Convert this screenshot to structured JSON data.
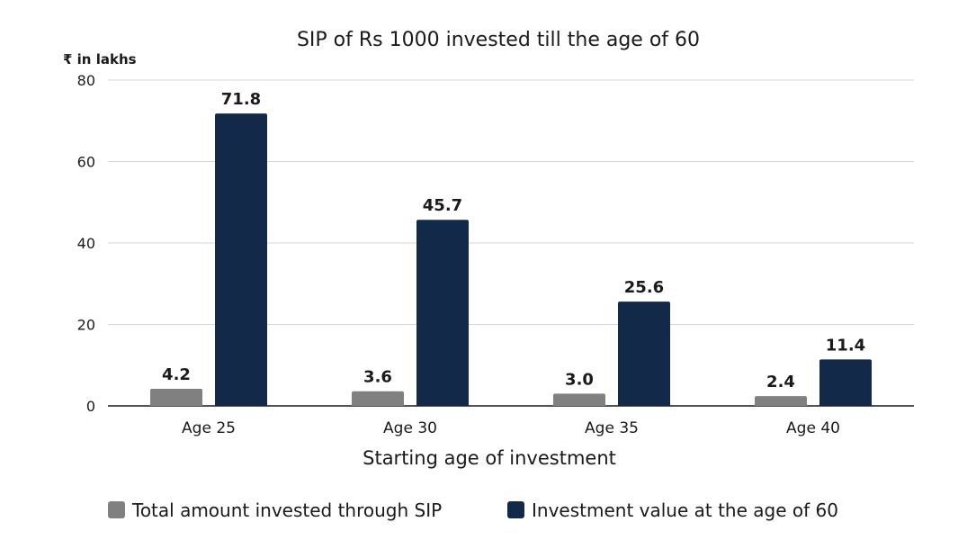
{
  "chart_data": {
    "type": "bar",
    "title": "SIP of Rs 1000 invested till the age of 60",
    "ylabel": "₹ in lakhs",
    "xlabel": "Starting age of investment",
    "categories": [
      "Age 25",
      "Age 30",
      "Age 35",
      "Age 40"
    ],
    "series": [
      {
        "name": "Total amount invested through SIP",
        "color": "#808080",
        "values": [
          4.2,
          3.6,
          3.0,
          2.4
        ],
        "labels": [
          "4.2",
          "3.6",
          "3.0",
          "2.4"
        ]
      },
      {
        "name": "Investment value at the age of 60",
        "color": "#12294a",
        "values": [
          71.8,
          45.7,
          25.6,
          11.4
        ],
        "labels": [
          "71.8",
          "45.7",
          "25.6",
          "11.4"
        ]
      }
    ],
    "ylim": [
      0,
      80
    ],
    "yticks": [
      "0",
      "20",
      "40",
      "60",
      "80"
    ],
    "grid": true,
    "legend_position": "bottom"
  }
}
